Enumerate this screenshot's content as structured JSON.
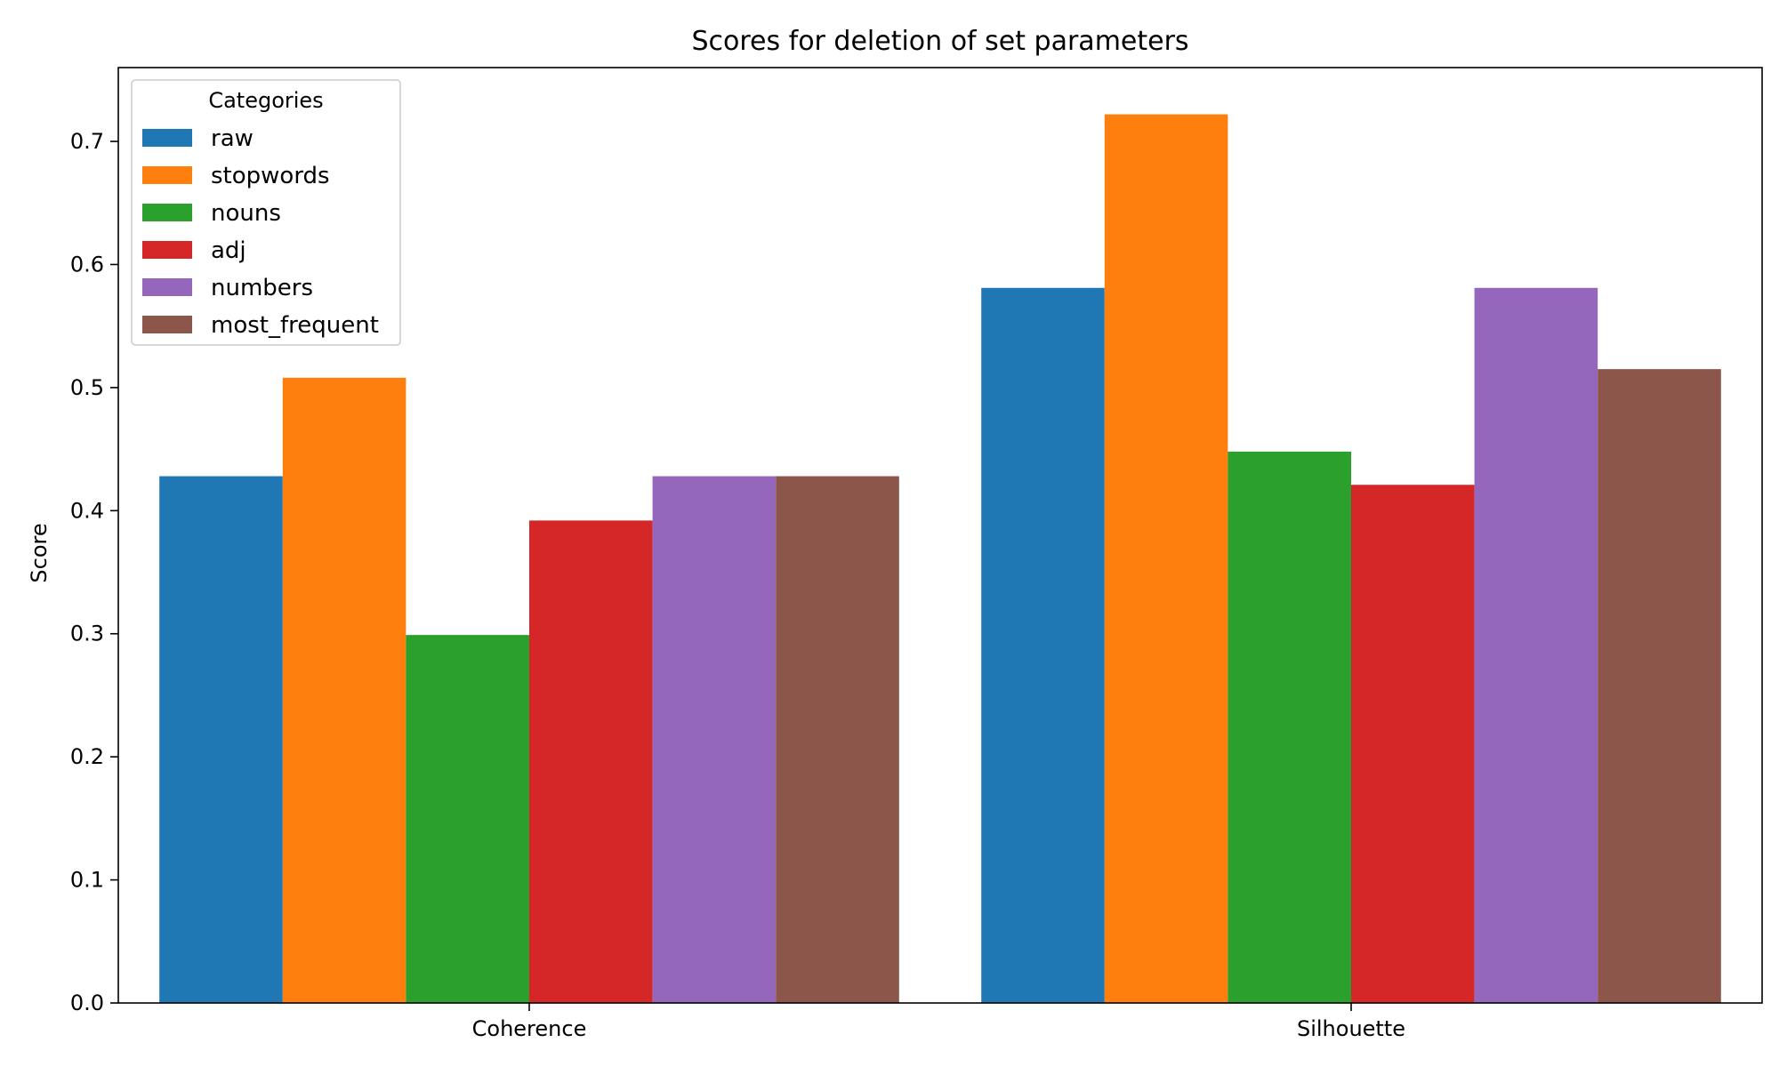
{
  "chart_data": {
    "type": "bar",
    "title": "Scores for deletion of set parameters",
    "xlabel": "",
    "ylabel": "Score",
    "categories": [
      "Coherence",
      "Silhouette"
    ],
    "ylim": [
      0,
      0.76
    ],
    "yticks": [
      0.0,
      0.1,
      0.2,
      0.3,
      0.4,
      0.5,
      0.6,
      0.7
    ],
    "ytick_labels": [
      "0.0",
      "0.1",
      "0.2",
      "0.3",
      "0.4",
      "0.5",
      "0.6",
      "0.7"
    ],
    "grid": false,
    "legend": {
      "title": "Categories",
      "placement": "top-left"
    },
    "series": [
      {
        "name": "raw",
        "color": "#1f77b4",
        "values": [
          0.428,
          0.581
        ]
      },
      {
        "name": "stopwords",
        "color": "#ff7f0e",
        "values": [
          0.508,
          0.722
        ]
      },
      {
        "name": "nouns",
        "color": "#2ca02c",
        "values": [
          0.299,
          0.448
        ]
      },
      {
        "name": "adj",
        "color": "#d62728",
        "values": [
          0.392,
          0.421
        ]
      },
      {
        "name": "numbers",
        "color": "#9467bd",
        "values": [
          0.428,
          0.581
        ]
      },
      {
        "name": "most_frequent",
        "color": "#8c564b",
        "values": [
          0.428,
          0.515
        ]
      }
    ]
  }
}
